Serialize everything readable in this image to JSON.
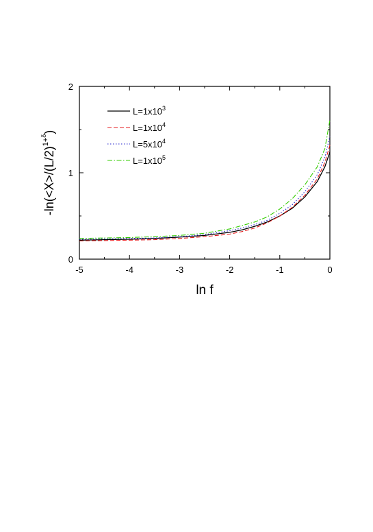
{
  "chart_data": {
    "type": "line",
    "title": "",
    "xlabel": "ln f",
    "ylabel": {
      "main": "-ln(<X>/(L/2)",
      "sup_base": "1+",
      "sup_delta": "δ",
      "tail": ")"
    },
    "xlim": [
      -5,
      0
    ],
    "ylim": [
      0,
      2
    ],
    "xticks": [
      "-5",
      "-4",
      "-3",
      "-2",
      "-1",
      "0"
    ],
    "yticks": [
      "0",
      "1",
      "2"
    ],
    "grid": false,
    "legend_position": "top-left",
    "series": [
      {
        "name": "L=1x10",
        "name_exp": "3",
        "color": "#000000",
        "style": "solid",
        "x": [
          -5,
          -4.5,
          -4,
          -3.5,
          -3,
          -2.5,
          -2,
          -1.75,
          -1.5,
          -1.25,
          -1,
          -0.75,
          -0.5,
          -0.25,
          -0.1,
          0
        ],
        "y": [
          0.22,
          0.225,
          0.23,
          0.24,
          0.255,
          0.275,
          0.31,
          0.34,
          0.38,
          0.43,
          0.5,
          0.59,
          0.72,
          0.9,
          1.07,
          1.24
        ]
      },
      {
        "name": "L=1x10",
        "name_exp": "4",
        "color": "#e41a1c",
        "style": "dashed",
        "x": [
          -5,
          -4.5,
          -4,
          -3.5,
          -3,
          -2.5,
          -2,
          -1.75,
          -1.5,
          -1.25,
          -1,
          -0.75,
          -0.5,
          -0.25,
          -0.1,
          0
        ],
        "y": [
          0.21,
          0.215,
          0.22,
          0.225,
          0.24,
          0.26,
          0.29,
          0.32,
          0.36,
          0.42,
          0.5,
          0.6,
          0.74,
          0.93,
          1.12,
          1.32
        ]
      },
      {
        "name": "L=5x10",
        "name_exp": "4",
        "color": "#2222cc",
        "style": "dotted",
        "x": [
          -5,
          -4.5,
          -4,
          -3.5,
          -3,
          -2.5,
          -2,
          -1.75,
          -1.5,
          -1.25,
          -1,
          -0.75,
          -0.5,
          -0.25,
          -0.1,
          0
        ],
        "y": [
          0.23,
          0.235,
          0.24,
          0.245,
          0.26,
          0.285,
          0.33,
          0.36,
          0.4,
          0.45,
          0.53,
          0.63,
          0.78,
          0.98,
          1.18,
          1.42
        ]
      },
      {
        "name": "L=1x10",
        "name_exp": "5",
        "color": "#33cc00",
        "style": "dashdot",
        "x": [
          -5,
          -4.5,
          -4,
          -3.5,
          -3,
          -2.5,
          -2,
          -1.75,
          -1.5,
          -1.25,
          -1,
          -0.75,
          -0.5,
          -0.25,
          -0.1,
          0
        ],
        "y": [
          0.24,
          0.245,
          0.25,
          0.26,
          0.275,
          0.3,
          0.35,
          0.39,
          0.43,
          0.49,
          0.58,
          0.7,
          0.86,
          1.07,
          1.28,
          1.61
        ]
      }
    ]
  }
}
